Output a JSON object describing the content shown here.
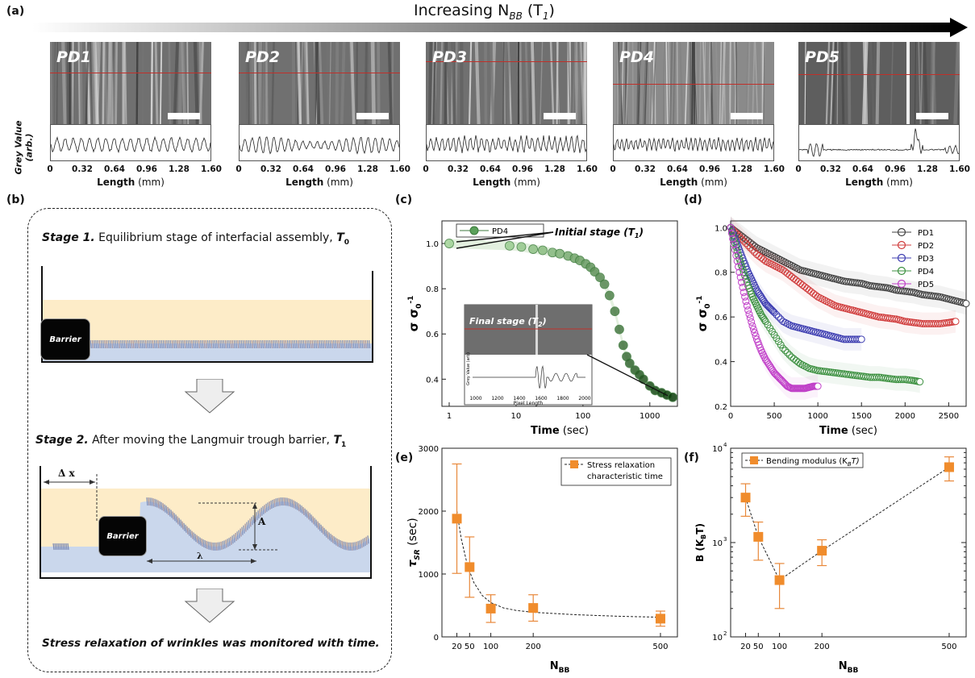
{
  "panel_a": {
    "label": "(a)",
    "arrow_prefix": "Increasing N",
    "arrow_sub": "BB",
    "arrow_suffix": " (T",
    "arrow_t_sub": "1",
    "arrow_close": ")",
    "y_axis_label": "Grey Value",
    "y_axis_unit": "(arb.)",
    "x_axis_label": "Length",
    "x_axis_unit": " (mm)",
    "ticks": [
      "0",
      "0.32",
      "0.64",
      "0.96",
      "1.28",
      "1.60"
    ],
    "images": [
      "PD1",
      "PD2",
      "PD3",
      "PD4",
      "PD5"
    ]
  },
  "panel_b": {
    "label": "(b)",
    "stage1_title": "Stage 1.",
    "stage1_text": " Equilibrium stage of interfacial assembly, ",
    "stage1_t": "T",
    "stage1_t_sub": "0",
    "barrier_label": "Barrier",
    "stage2_title": "Stage 2.",
    "stage2_text": " After moving the Langmuir trough barrier, ",
    "stage2_t": "T",
    "stage2_t_sub": "1",
    "delta_x": "Δ x",
    "amp": "A",
    "lambda": "λ",
    "conclusion": "Stress relaxation of wrinkles was monitored with time."
  },
  "chart_data": [
    {
      "id": "c",
      "type": "scatter",
      "label": "(c)",
      "xlabel": "Time",
      "xunit": " (sec)",
      "ylabel": "σ σ",
      "ylabel_sup": "0",
      "ylabel_exp": "-1",
      "x_scale": "log",
      "xlim": [
        1,
        2500
      ],
      "ylim": [
        0.28,
        1.1
      ],
      "x_ticks": [
        "1",
        "10",
        "100",
        "1000"
      ],
      "y_ticks": [
        "0.4",
        "0.6",
        "0.8",
        "1.0"
      ],
      "legend": [
        "PD4"
      ],
      "annotation_initial": "Initial stage (T",
      "annotation_initial_sub": "1",
      "annotation_final": "Final stage (T",
      "annotation_final_sub": "2",
      "inset_ylabel": "Grey Value (arb)",
      "inset_xlabel": "Pixel Length",
      "inset_ticks": [
        "1000",
        "1200",
        "1400",
        "1600",
        "1800",
        "2000"
      ],
      "series": [
        {
          "name": "PD4",
          "x": [
            1,
            8,
            12,
            18,
            25,
            35,
            45,
            60,
            75,
            90,
            110,
            130,
            150,
            180,
            210,
            250,
            300,
            350,
            400,
            450,
            500,
            600,
            700,
            800,
            1000,
            1200,
            1500,
            1800,
            2200
          ],
          "y": [
            1.0,
            0.99,
            0.985,
            0.975,
            0.97,
            0.96,
            0.955,
            0.945,
            0.935,
            0.925,
            0.91,
            0.895,
            0.875,
            0.85,
            0.82,
            0.77,
            0.7,
            0.62,
            0.55,
            0.5,
            0.47,
            0.44,
            0.42,
            0.4,
            0.37,
            0.35,
            0.34,
            0.33,
            0.32
          ]
        }
      ]
    },
    {
      "id": "d",
      "type": "scatter",
      "label": "(d)",
      "xlabel": "Time",
      "xunit": " (sec)",
      "ylabel": "σ σ",
      "ylabel_sup": "0",
      "ylabel_exp": "-1",
      "xlim": [
        0,
        2700
      ],
      "ylim": [
        0.2,
        1.03
      ],
      "x_ticks": [
        "0",
        "500",
        "1000",
        "1500",
        "2000",
        "2500"
      ],
      "y_ticks": [
        "0.2",
        "0.4",
        "0.6",
        "0.8",
        "1.0"
      ],
      "legend": [
        "PD1",
        "PD2",
        "PD3",
        "PD4",
        "PD5"
      ],
      "series": [
        {
          "name": "PD1",
          "color": "#404040",
          "x": [
            0,
            100,
            200,
            300,
            400,
            500,
            600,
            700,
            800,
            900,
            1000,
            1100,
            1200,
            1300,
            1400,
            1500,
            1600,
            1700,
            1800,
            1900,
            2000,
            2100,
            2200,
            2300,
            2400,
            2500,
            2600,
            2700
          ],
          "y": [
            1.0,
            0.97,
            0.94,
            0.91,
            0.89,
            0.87,
            0.85,
            0.83,
            0.81,
            0.8,
            0.79,
            0.78,
            0.77,
            0.76,
            0.755,
            0.75,
            0.74,
            0.735,
            0.73,
            0.72,
            0.715,
            0.71,
            0.7,
            0.695,
            0.69,
            0.68,
            0.67,
            0.66
          ]
        },
        {
          "name": "PD2",
          "color": "#d03c3c",
          "x": [
            0,
            100,
            200,
            300,
            400,
            500,
            600,
            700,
            800,
            900,
            1000,
            1100,
            1200,
            1300,
            1400,
            1500,
            1600,
            1700,
            1800,
            1900,
            2000,
            2100,
            2200,
            2300,
            2400,
            2500,
            2580
          ],
          "y": [
            1.0,
            0.96,
            0.92,
            0.88,
            0.85,
            0.83,
            0.81,
            0.78,
            0.75,
            0.72,
            0.69,
            0.67,
            0.65,
            0.64,
            0.63,
            0.62,
            0.61,
            0.6,
            0.595,
            0.59,
            0.58,
            0.575,
            0.57,
            0.57,
            0.57,
            0.575,
            0.58
          ]
        },
        {
          "name": "PD3",
          "color": "#3c3cb0",
          "x": [
            0,
            50,
            100,
            150,
            200,
            250,
            300,
            350,
            400,
            450,
            500,
            600,
            700,
            800,
            900,
            1000,
            1100,
            1200,
            1300,
            1400,
            1500
          ],
          "y": [
            1.0,
            0.95,
            0.9,
            0.85,
            0.8,
            0.76,
            0.72,
            0.69,
            0.66,
            0.64,
            0.62,
            0.58,
            0.56,
            0.55,
            0.54,
            0.53,
            0.52,
            0.51,
            0.5,
            0.5,
            0.5
          ]
        },
        {
          "name": "PD4",
          "color": "#3c9040",
          "x": [
            0,
            50,
            100,
            150,
            200,
            250,
            300,
            350,
            400,
            500,
            600,
            700,
            800,
            900,
            1000,
            1100,
            1200,
            1300,
            1400,
            1500,
            1600,
            1700,
            1800,
            1900,
            2000,
            2100,
            2170
          ],
          "y": [
            1.0,
            0.93,
            0.86,
            0.8,
            0.74,
            0.69,
            0.65,
            0.61,
            0.58,
            0.52,
            0.46,
            0.42,
            0.39,
            0.37,
            0.36,
            0.355,
            0.35,
            0.345,
            0.34,
            0.335,
            0.33,
            0.33,
            0.325,
            0.32,
            0.32,
            0.315,
            0.31
          ]
        },
        {
          "name": "PD5",
          "color": "#c040c8",
          "x": [
            0,
            50,
            100,
            150,
            200,
            250,
            300,
            350,
            400,
            450,
            500,
            550,
            600,
            650,
            700,
            750,
            800,
            850,
            900,
            950,
            1000
          ],
          "y": [
            1.0,
            0.9,
            0.8,
            0.71,
            0.63,
            0.56,
            0.5,
            0.45,
            0.41,
            0.38,
            0.35,
            0.33,
            0.31,
            0.29,
            0.28,
            0.28,
            0.28,
            0.28,
            0.285,
            0.29,
            0.29
          ]
        }
      ]
    },
    {
      "id": "e",
      "type": "scatter",
      "label": "(e)",
      "xlabel": "N",
      "xlabel_sub": "BB",
      "ylabel": "τ",
      "ylabel_sub": "SR",
      "yunit": " (sec)",
      "xlim": [
        0,
        540
      ],
      "ylim": [
        0,
        3000
      ],
      "x_ticks": [
        "20",
        "50",
        "100",
        "200",
        "500"
      ],
      "y_ticks": [
        "0",
        "1000",
        "2000",
        "3000"
      ],
      "legend": [
        "Stress relaxation",
        "characteristic time"
      ],
      "x": [
        20,
        50,
        100,
        200,
        500
      ],
      "y": [
        1880,
        1110,
        450,
        460,
        290
      ],
      "err": [
        870,
        480,
        220,
        210,
        120
      ]
    },
    {
      "id": "f",
      "type": "scatter",
      "label": "(f)",
      "xlabel": "N",
      "xlabel_sub": "BB",
      "ylabel": "B (K",
      "ylabel_sub": "B",
      "ylabel_end": "T)",
      "y_scale": "log",
      "xlim": [
        0,
        540
      ],
      "ylim": [
        100,
        10000
      ],
      "x_ticks": [
        "20",
        "50",
        "100",
        "200",
        "500"
      ],
      "y_ticks": [
        "10",
        "10",
        "10"
      ],
      "y_ticks_exp": [
        "2",
        "3",
        "4"
      ],
      "legend": [
        "Bending modulus (K",
        "B",
        "T)"
      ],
      "x": [
        20,
        50,
        100,
        200,
        500
      ],
      "y": [
        3000,
        1150,
        400,
        820,
        6300
      ],
      "err_lo": [
        1100,
        500,
        200,
        250,
        1800
      ],
      "err_hi": [
        1200,
        500,
        200,
        250,
        1800
      ]
    }
  ]
}
